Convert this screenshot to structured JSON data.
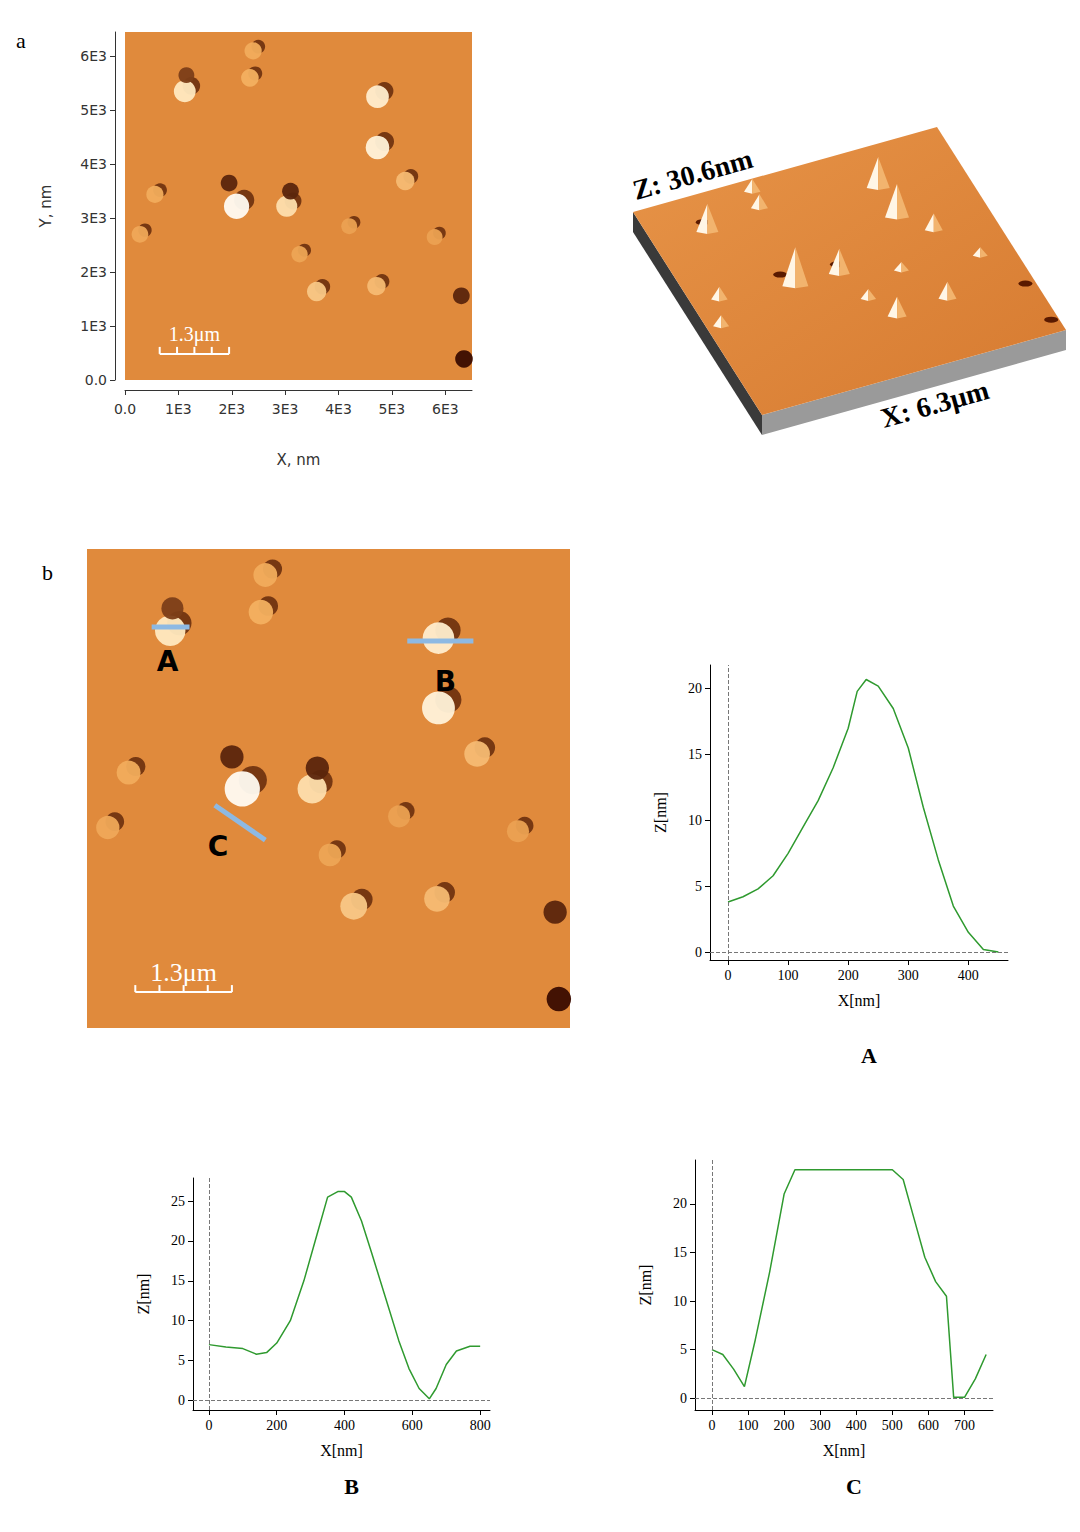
{
  "chart_data": [
    {
      "panel": "a",
      "type": "scatter",
      "x_label": "X, nm",
      "y_label": "Y, nm",
      "xlim": [
        0,
        6500
      ],
      "ylim": [
        0,
        6450
      ],
      "xticks": [
        {
          "value": 0,
          "label": "0.0"
        },
        {
          "value": 1000,
          "label": "1E3"
        },
        {
          "value": 2000,
          "label": "2E3"
        },
        {
          "value": 3000,
          "label": "3E3"
        },
        {
          "value": 4000,
          "label": "4E3"
        },
        {
          "value": 5000,
          "label": "5E3"
        },
        {
          "value": 6000,
          "label": "6E3"
        }
      ],
      "yticks": [
        {
          "value": 0,
          "label": "0.0"
        },
        {
          "value": 1000,
          "label": "1E3"
        },
        {
          "value": 2000,
          "label": "2E3"
        },
        {
          "value": 3000,
          "label": "3E3"
        },
        {
          "value": 4000,
          "label": "4E3"
        },
        {
          "value": 5000,
          "label": "5E3"
        },
        {
          "value": 6000,
          "label": "6E3"
        }
      ],
      "color_range": [
        -10,
        30
      ],
      "features": [
        {
          "x": 1120,
          "y": 5350,
          "z": 20
        },
        {
          "x": 1150,
          "y": 5650,
          "z": -6
        },
        {
          "x": 4730,
          "y": 5250,
          "z": 22
        },
        {
          "x": 4730,
          "y": 4310,
          "z": 24
        },
        {
          "x": 2090,
          "y": 3220,
          "z": 28
        },
        {
          "x": 1950,
          "y": 3650,
          "z": -8
        },
        {
          "x": 3030,
          "y": 3220,
          "z": 18
        },
        {
          "x": 3100,
          "y": 3500,
          "z": -8
        },
        {
          "x": 5250,
          "y": 3690,
          "z": 12
        },
        {
          "x": 560,
          "y": 3440,
          "z": 9
        },
        {
          "x": 3590,
          "y": 1640,
          "z": 14
        },
        {
          "x": 4710,
          "y": 1740,
          "z": 12
        },
        {
          "x": 3270,
          "y": 2330,
          "z": 7
        },
        {
          "x": 2400,
          "y": 6100,
          "z": 9
        },
        {
          "x": 2340,
          "y": 5600,
          "z": 10
        },
        {
          "x": 280,
          "y": 2700,
          "z": 8
        },
        {
          "x": 4200,
          "y": 2850,
          "z": 6
        },
        {
          "x": 5800,
          "y": 2650,
          "z": 6
        },
        {
          "x": 6350,
          "y": 390,
          "z": -10
        },
        {
          "x": 6300,
          "y": 1560,
          "z": -8
        }
      ],
      "scale_bar": {
        "label": "1.3μm",
        "length": 1300
      },
      "surface_3d": {
        "z_label": "Z: 30.6nm",
        "x_label": "X: 6.3μm"
      }
    },
    {
      "panel": "b",
      "type": "scatter",
      "tick_labels": false,
      "scale_bar": {
        "label": "1.3μm",
        "length": 1300
      },
      "profiles": [
        {
          "name": "A",
          "from": [
            870,
            5400
          ],
          "to": [
            1380,
            5400
          ]
        },
        {
          "name": "B",
          "from": [
            4310,
            5210
          ],
          "to": [
            5200,
            5210
          ]
        },
        {
          "name": "C",
          "from": [
            1720,
            3000
          ],
          "to": [
            2400,
            2530
          ]
        }
      ]
    },
    {
      "type": "line",
      "title": "A",
      "x_label": "X[nm]",
      "y_label": "Z[nm]",
      "color": "#2f9a2f",
      "x": [
        0,
        25,
        50,
        75,
        100,
        125,
        150,
        175,
        200,
        215,
        230,
        250,
        275,
        300,
        325,
        350,
        375,
        400,
        425,
        450
      ],
      "values": [
        3.8,
        4.2,
        4.8,
        5.8,
        7.5,
        9.5,
        11.5,
        14,
        17,
        19.8,
        20.7,
        20.2,
        18.5,
        15.5,
        11,
        7,
        3.5,
        1.5,
        0.2,
        0
      ],
      "xlim": [
        -30,
        466
      ],
      "ylim": [
        -0.6,
        21.8
      ],
      "xticks": [
        0,
        100,
        200,
        300,
        400
      ],
      "yticks": [
        0,
        5,
        10,
        15,
        20
      ]
    },
    {
      "type": "line",
      "title": "B",
      "x_label": "X[nm]",
      "y_label": "Z[nm]",
      "color": "#2f9a2f",
      "x": [
        0,
        50,
        100,
        140,
        170,
        200,
        240,
        280,
        320,
        350,
        380,
        400,
        420,
        450,
        480,
        520,
        560,
        590,
        620,
        650,
        670,
        700,
        730,
        770,
        800
      ],
      "values": [
        7,
        6.7,
        6.5,
        5.8,
        6,
        7.2,
        10,
        15,
        21,
        25.5,
        26.2,
        26.2,
        25.5,
        22.5,
        18.5,
        13,
        7.5,
        4,
        1.5,
        0.2,
        1.5,
        4.5,
        6.2,
        6.8,
        6.8
      ],
      "xlim": [
        -47,
        829
      ],
      "ylim": [
        -1.2,
        27.9
      ],
      "xticks": [
        0,
        200,
        400,
        600,
        800
      ],
      "yticks": [
        0,
        5,
        10,
        15,
        20,
        25
      ]
    },
    {
      "type": "line",
      "title": "C",
      "x_label": "X[nm]",
      "y_label": "Z[nm]",
      "color": "#2f9a2f",
      "x": [
        0,
        30,
        60,
        90,
        120,
        160,
        200,
        230,
        300,
        400,
        500,
        530,
        560,
        590,
        620,
        650,
        670,
        700,
        730,
        760
      ],
      "values": [
        5,
        4.5,
        3,
        1.2,
        6,
        13,
        21,
        23.5,
        23.5,
        23.5,
        23.5,
        22.5,
        18.5,
        14.5,
        12,
        10.5,
        0.1,
        0.1,
        2,
        4.5
      ],
      "xlim": [
        -47,
        779
      ],
      "ylim": [
        -1.2,
        24.5
      ],
      "xticks": [
        0,
        100,
        200,
        300,
        400,
        500,
        600,
        700
      ],
      "yticks": [
        0,
        5,
        10,
        15,
        20
      ]
    }
  ]
}
